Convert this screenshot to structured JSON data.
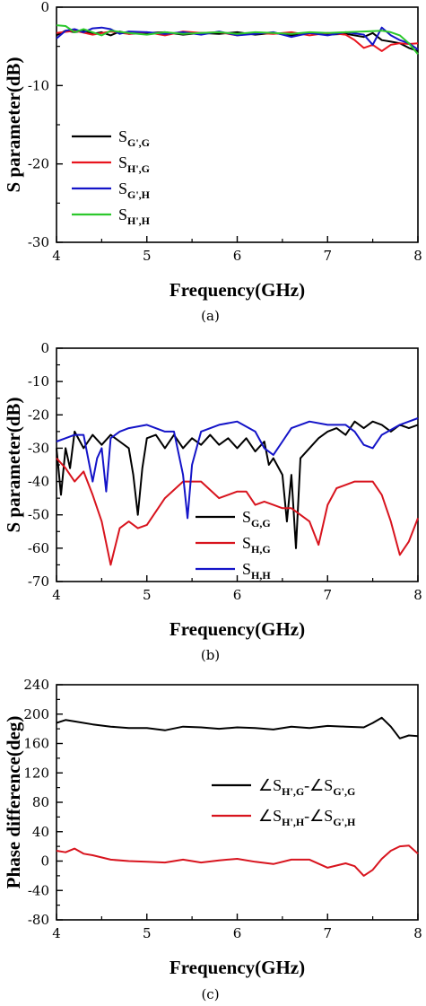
{
  "chart_data": [
    {
      "type": "line",
      "panel_label": "(a)",
      "xlabel": "Frequency(GHz)",
      "ylabel": "S parameter(dB)",
      "xlim": [
        4,
        8
      ],
      "ylim": [
        -30,
        0
      ],
      "xticks": [
        4,
        5,
        6,
        7,
        8
      ],
      "yticks": [
        -30,
        -20,
        -10,
        0
      ],
      "legend_position": "left",
      "series": [
        {
          "name": "S",
          "sub": "G',G",
          "color": "#000000",
          "x": [
            4.0,
            4.1,
            4.2,
            4.3,
            4.4,
            4.5,
            4.6,
            4.7,
            4.8,
            5.0,
            5.2,
            5.4,
            5.6,
            5.8,
            6.0,
            6.2,
            6.4,
            6.6,
            6.8,
            7.0,
            7.2,
            7.4,
            7.5,
            7.6,
            7.7,
            7.8,
            7.9,
            8.0
          ],
          "y": [
            -3.6,
            -3.0,
            -3.2,
            -3.0,
            -3.4,
            -3.2,
            -3.6,
            -3.1,
            -3.4,
            -3.3,
            -3.2,
            -3.5,
            -3.3,
            -3.4,
            -3.2,
            -3.5,
            -3.3,
            -3.6,
            -3.3,
            -3.5,
            -3.4,
            -3.8,
            -3.3,
            -4.2,
            -4.4,
            -4.6,
            -5.2,
            -5.6
          ]
        },
        {
          "name": "S",
          "sub": "H',G",
          "color": "#e8141e",
          "x": [
            4.0,
            4.2,
            4.4,
            4.6,
            4.8,
            5.0,
            5.2,
            5.4,
            5.6,
            5.8,
            6.0,
            6.2,
            6.4,
            6.6,
            6.8,
            7.0,
            7.2,
            7.3,
            7.4,
            7.5,
            7.6,
            7.7,
            7.8,
            7.9,
            8.0
          ],
          "y": [
            -3.3,
            -3.0,
            -3.5,
            -3.1,
            -3.4,
            -3.2,
            -3.6,
            -3.1,
            -3.3,
            -3.2,
            -3.6,
            -3.3,
            -3.4,
            -3.2,
            -3.6,
            -3.3,
            -3.5,
            -4.2,
            -5.2,
            -4.8,
            -5.6,
            -4.8,
            -4.6,
            -4.7,
            -4.6
          ]
        },
        {
          "name": "S",
          "sub": "G',H",
          "color": "#1414c8",
          "x": [
            4.0,
            4.1,
            4.2,
            4.3,
            4.4,
            4.5,
            4.6,
            4.7,
            4.8,
            5.0,
            5.2,
            5.4,
            5.6,
            5.8,
            6.0,
            6.2,
            6.4,
            6.6,
            6.8,
            7.0,
            7.2,
            7.4,
            7.5,
            7.6,
            7.7,
            7.8,
            7.9,
            8.0
          ],
          "y": [
            -4.0,
            -3.0,
            -2.8,
            -3.2,
            -2.7,
            -2.6,
            -2.8,
            -3.4,
            -3.1,
            -3.2,
            -3.4,
            -3.2,
            -3.5,
            -3.1,
            -3.6,
            -3.4,
            -3.2,
            -3.8,
            -3.3,
            -3.6,
            -3.2,
            -3.5,
            -4.8,
            -2.6,
            -3.6,
            -4.2,
            -4.6,
            -5.4
          ]
        },
        {
          "name": "S",
          "sub": "H',H",
          "color": "#2cc82c",
          "x": [
            4.0,
            4.1,
            4.2,
            4.3,
            4.4,
            4.5,
            4.6,
            4.8,
            5.0,
            5.2,
            5.4,
            5.6,
            5.8,
            6.0,
            6.2,
            6.4,
            6.6,
            6.8,
            7.0,
            7.2,
            7.4,
            7.6,
            7.7,
            7.8,
            7.9,
            8.0
          ],
          "y": [
            -2.3,
            -2.4,
            -3.2,
            -2.8,
            -3.2,
            -3.6,
            -3.0,
            -3.3,
            -3.5,
            -3.2,
            -3.4,
            -3.3,
            -3.2,
            -3.4,
            -3.2,
            -3.3,
            -3.4,
            -3.2,
            -3.3,
            -3.2,
            -3.1,
            -3.0,
            -3.2,
            -3.6,
            -4.6,
            -6.0
          ]
        }
      ]
    },
    {
      "type": "line",
      "panel_label": "(b)",
      "xlabel": "Frequency(GHz)",
      "ylabel": "S parameter(dB)",
      "xlim": [
        4,
        8
      ],
      "ylim": [
        -70,
        0
      ],
      "xticks": [
        4,
        5,
        6,
        7,
        8
      ],
      "yticks": [
        -70,
        -60,
        -50,
        -40,
        -30,
        -20,
        -10,
        0
      ],
      "legend_position": "center-right",
      "series": [
        {
          "name": "S",
          "sub": "G,G",
          "color": "#000000",
          "x": [
            4.0,
            4.05,
            4.1,
            4.15,
            4.2,
            4.3,
            4.4,
            4.5,
            4.6,
            4.7,
            4.8,
            4.85,
            4.9,
            4.95,
            5.0,
            5.1,
            5.2,
            5.3,
            5.4,
            5.5,
            5.6,
            5.7,
            5.8,
            5.9,
            6.0,
            6.1,
            6.2,
            6.3,
            6.35,
            6.4,
            6.5,
            6.55,
            6.6,
            6.65,
            6.7,
            6.8,
            6.9,
            7.0,
            7.1,
            7.2,
            7.3,
            7.4,
            7.5,
            7.6,
            7.7,
            7.8,
            7.9,
            8.0
          ],
          "y": [
            -30,
            -44,
            -30,
            -36,
            -25,
            -30,
            -26,
            -29,
            -26,
            -28,
            -30,
            -38,
            -50,
            -36,
            -27,
            -26,
            -30,
            -26,
            -30,
            -27,
            -29,
            -26,
            -29,
            -27,
            -30,
            -27,
            -31,
            -28,
            -35,
            -33,
            -38,
            -52,
            -38,
            -60,
            -33,
            -30,
            -27,
            -25,
            -24,
            -26,
            -22,
            -24,
            -22,
            -23,
            -25,
            -23,
            -24,
            -23
          ]
        },
        {
          "name": "S",
          "sub": "H,G",
          "color": "#d8141e",
          "x": [
            4.0,
            4.1,
            4.2,
            4.3,
            4.4,
            4.5,
            4.6,
            4.7,
            4.8,
            4.9,
            5.0,
            5.2,
            5.4,
            5.6,
            5.8,
            6.0,
            6.1,
            6.2,
            6.3,
            6.4,
            6.5,
            6.6,
            6.7,
            6.8,
            6.9,
            7.0,
            7.1,
            7.2,
            7.3,
            7.5,
            7.6,
            7.7,
            7.8,
            7.9,
            8.0
          ],
          "y": [
            -33,
            -36,
            -40,
            -37,
            -44,
            -52,
            -65,
            -54,
            -52,
            -54,
            -53,
            -45,
            -40,
            -40,
            -45,
            -43,
            -43,
            -47,
            -46,
            -47,
            -48,
            -48,
            -50,
            -52,
            -59,
            -47,
            -42,
            -41,
            -40,
            -40,
            -44,
            -52,
            -62,
            -58,
            -51
          ]
        },
        {
          "name": "S",
          "sub": "H,H",
          "color": "#1414c8",
          "x": [
            4.0,
            4.1,
            4.2,
            4.3,
            4.4,
            4.45,
            4.5,
            4.55,
            4.6,
            4.7,
            4.8,
            5.0,
            5.2,
            5.3,
            5.4,
            5.45,
            5.5,
            5.6,
            5.8,
            6.0,
            6.2,
            6.3,
            6.4,
            6.5,
            6.6,
            6.8,
            7.0,
            7.2,
            7.3,
            7.4,
            7.5,
            7.6,
            7.8,
            7.9,
            8.0
          ],
          "y": [
            -28,
            -27,
            -26,
            -26,
            -40,
            -33,
            -30,
            -43,
            -27,
            -25,
            -24,
            -23,
            -25,
            -25,
            -38,
            -51,
            -35,
            -25,
            -23,
            -22,
            -25,
            -30,
            -32,
            -28,
            -24,
            -22,
            -23,
            -23,
            -25,
            -29,
            -30,
            -26,
            -23,
            -22,
            -21
          ]
        }
      ]
    },
    {
      "type": "line",
      "panel_label": "(c)",
      "xlabel": "Frequency(GHz)",
      "ylabel": "Phase difference(deg)",
      "xlim": [
        4,
        8
      ],
      "ylim": [
        -80,
        240
      ],
      "xticks": [
        4,
        5,
        6,
        7,
        8
      ],
      "yticks": [
        -80,
        -40,
        0,
        40,
        80,
        120,
        160,
        200,
        240
      ],
      "legend_position": "right",
      "series": [
        {
          "name": "∠S",
          "sub": "H',G",
          "name2": "-∠S",
          "sub2": "G',G",
          "color": "#000000",
          "x": [
            4.0,
            4.1,
            4.2,
            4.4,
            4.6,
            4.8,
            5.0,
            5.2,
            5.4,
            5.6,
            5.8,
            6.0,
            6.2,
            6.4,
            6.6,
            6.8,
            7.0,
            7.2,
            7.4,
            7.5,
            7.6,
            7.7,
            7.8,
            7.9,
            8.0
          ],
          "y": [
            188,
            192,
            190,
            186,
            183,
            181,
            181,
            178,
            183,
            182,
            180,
            182,
            181,
            179,
            183,
            181,
            184,
            183,
            182,
            188,
            195,
            183,
            167,
            171,
            170
          ]
        },
        {
          "name": "∠S",
          "sub": "H',H",
          "name2": "-∠S",
          "sub2": "G',H",
          "color": "#d8141e",
          "x": [
            4.0,
            4.1,
            4.2,
            4.3,
            4.4,
            4.6,
            4.8,
            5.0,
            5.2,
            5.4,
            5.6,
            5.8,
            6.0,
            6.2,
            6.4,
            6.6,
            6.8,
            7.0,
            7.2,
            7.3,
            7.4,
            7.5,
            7.6,
            7.7,
            7.8,
            7.9,
            8.0
          ],
          "y": [
            14,
            12,
            17,
            10,
            8,
            2,
            0,
            -1,
            -2,
            2,
            -2,
            1,
            3,
            -1,
            -4,
            2,
            2,
            -9,
            -3,
            -7,
            -20,
            -12,
            3,
            14,
            20,
            21,
            10
          ]
        }
      ]
    }
  ]
}
